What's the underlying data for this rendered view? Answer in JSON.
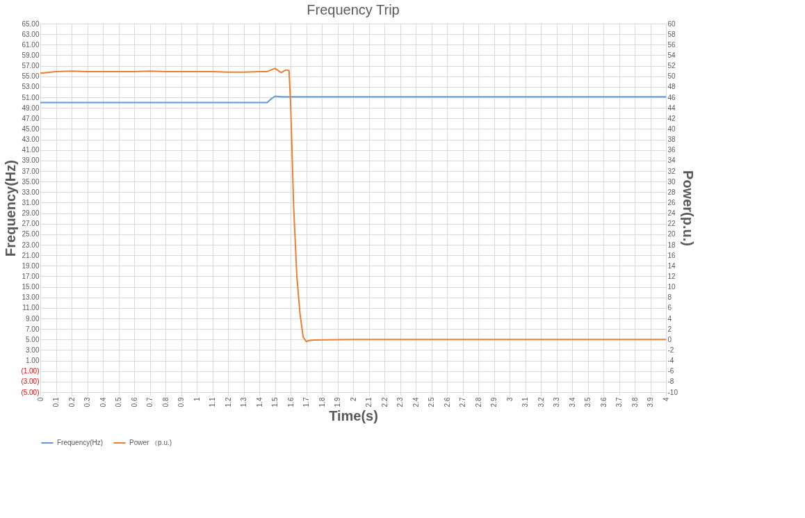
{
  "chart_data": {
    "type": "line",
    "title": "Frequency Trip",
    "xlabel": "Time(s)",
    "ylabel": "Frequency(Hz)",
    "y2label": "Power(p.u.)",
    "xlim": [
      0,
      4
    ],
    "xticks": [
      0,
      0.1,
      0.2,
      0.3,
      0.4,
      0.5,
      0.6,
      0.7,
      0.8,
      0.9,
      1,
      1.1,
      1.2,
      1.3,
      1.4,
      1.5,
      1.6,
      1.7,
      1.8,
      1.9,
      2,
      2.1,
      2.2,
      2.3,
      2.4,
      2.5,
      2.6,
      2.7,
      2.8,
      2.9,
      3,
      3.1,
      3.2,
      3.3,
      3.4,
      3.5,
      3.6,
      3.7,
      3.8,
      3.9,
      4
    ],
    "ylim": [
      -5,
      65
    ],
    "yticks": [
      {
        "value": -5,
        "label": "(5.00)"
      },
      {
        "value": -3,
        "label": "(3.00)"
      },
      {
        "value": -1,
        "label": "(1.00)"
      },
      {
        "value": 1,
        "label": "1.00"
      },
      {
        "value": 3,
        "label": "3.00"
      },
      {
        "value": 5,
        "label": "5.00"
      },
      {
        "value": 7,
        "label": "7.00"
      },
      {
        "value": 9,
        "label": "9.00"
      },
      {
        "value": 11,
        "label": "11.00"
      },
      {
        "value": 13,
        "label": "13.00"
      },
      {
        "value": 15,
        "label": "15.00"
      },
      {
        "value": 17,
        "label": "17.00"
      },
      {
        "value": 19,
        "label": "19.00"
      },
      {
        "value": 21,
        "label": "21.00"
      },
      {
        "value": 23,
        "label": "23.00"
      },
      {
        "value": 25,
        "label": "25.00"
      },
      {
        "value": 27,
        "label": "27.00"
      },
      {
        "value": 29,
        "label": "29.00"
      },
      {
        "value": 31,
        "label": "31.00"
      },
      {
        "value": 33,
        "label": "33.00"
      },
      {
        "value": 35,
        "label": "35.00"
      },
      {
        "value": 37,
        "label": "37.00"
      },
      {
        "value": 39,
        "label": "39.00"
      },
      {
        "value": 41,
        "label": "41.00"
      },
      {
        "value": 43,
        "label": "43.00"
      },
      {
        "value": 45,
        "label": "45.00"
      },
      {
        "value": 47,
        "label": "47.00"
      },
      {
        "value": 49,
        "label": "49.00"
      },
      {
        "value": 51,
        "label": "51.00"
      },
      {
        "value": 53,
        "label": "53.00"
      },
      {
        "value": 55,
        "label": "55.00"
      },
      {
        "value": 57,
        "label": "57.00"
      },
      {
        "value": 59,
        "label": "59.00"
      },
      {
        "value": 61,
        "label": "61.00"
      },
      {
        "value": 63,
        "label": "63.00"
      },
      {
        "value": 65,
        "label": "65.00"
      }
    ],
    "y2lim": [
      -10,
      60
    ],
    "y2ticks": [
      -10,
      -8,
      -6,
      -4,
      -2,
      0,
      2,
      4,
      6,
      8,
      10,
      12,
      14,
      16,
      18,
      20,
      22,
      24,
      26,
      28,
      30,
      32,
      34,
      36,
      38,
      40,
      42,
      44,
      46,
      48,
      50,
      52,
      54,
      56,
      58,
      60
    ],
    "grid": true,
    "legend": "bottom",
    "line_style": "solid",
    "marker": "none",
    "series": [
      {
        "name": "Frequency(Hz)",
        "color": "#5b9bd5",
        "x": [
          0,
          0.5,
          1,
          1.4,
          1.45,
          1.48,
          1.5,
          1.55,
          2,
          3,
          4
        ],
        "values": [
          50,
          50,
          50,
          50,
          50,
          50.8,
          51.2,
          51.1,
          51.1,
          51.1,
          51.1
        ]
      },
      {
        "name": "Power （p.u.)",
        "color": "#ed7d31",
        "axis": "y2",
        "x": [
          0,
          0.1,
          0.2,
          0.3,
          0.4,
          0.5,
          0.6,
          0.7,
          0.8,
          0.9,
          1,
          1.1,
          1.2,
          1.3,
          1.4,
          1.45,
          1.5,
          1.54,
          1.57,
          1.59,
          1.6,
          1.62,
          1.64,
          1.66,
          1.68,
          1.7,
          1.72,
          1.75,
          2,
          2.5,
          3,
          3.5,
          4
        ],
        "values": [
          50.6,
          50.9,
          51,
          50.9,
          50.9,
          50.9,
          50.9,
          51,
          50.9,
          50.9,
          50.9,
          50.9,
          50.8,
          50.8,
          50.9,
          50.9,
          51.5,
          50.7,
          51.2,
          51.1,
          45,
          25,
          12,
          5,
          0.5,
          -0.4,
          -0.2,
          -0.1,
          0,
          0,
          0,
          0,
          0
        ]
      }
    ]
  }
}
